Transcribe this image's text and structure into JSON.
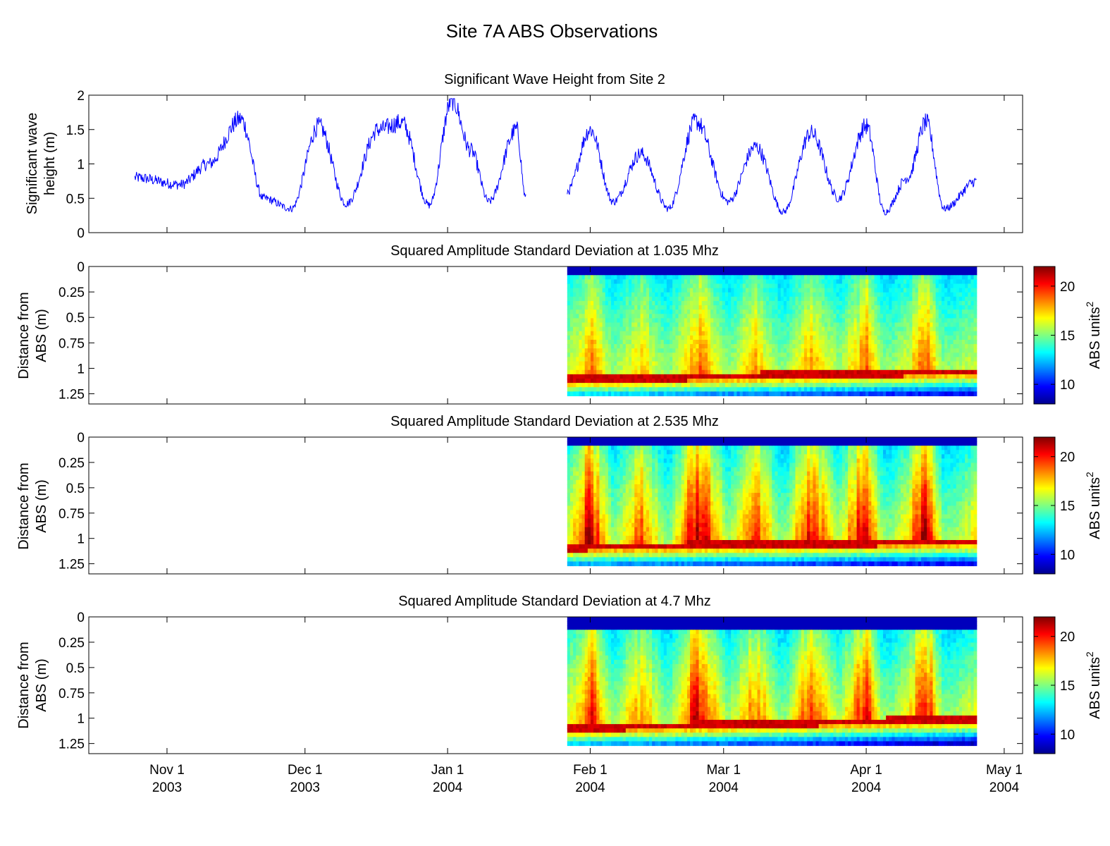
{
  "figure_title": "Site 7A ABS Observations",
  "x_axis": {
    "range": [
      "2003-10-15",
      "2004-05-05"
    ],
    "ticks": [
      {
        "date": "2003-11-01",
        "line1": "Nov 1",
        "line2": "2003"
      },
      {
        "date": "2003-12-01",
        "line1": "Dec 1",
        "line2": "2003"
      },
      {
        "date": "2004-01-01",
        "line1": "Jan 1",
        "line2": "2004"
      },
      {
        "date": "2004-02-01",
        "line1": "Feb 1",
        "line2": "2004"
      },
      {
        "date": "2004-03-01",
        "line1": "Mar 1",
        "line2": "2004"
      },
      {
        "date": "2004-04-01",
        "line1": "Apr 1",
        "line2": "2004"
      },
      {
        "date": "2004-05-01",
        "line1": "May 1",
        "line2": "2004"
      }
    ]
  },
  "colors": {
    "wave_line": "#0000ff",
    "jet": [
      "#00008f",
      "#0000ff",
      "#0080ff",
      "#00ffff",
      "#80ff80",
      "#ffff00",
      "#ff8000",
      "#ff0000",
      "#800000"
    ]
  },
  "chart_data": [
    {
      "type": "line",
      "title": "Significant Wave Height from Site 2",
      "ylabel": [
        "Significant wave",
        "height (m)"
      ],
      "ylim": [
        0,
        2
      ],
      "yticks": [
        "0",
        "0.5",
        "1",
        "1.5",
        "2"
      ],
      "segments": [
        {
          "start": "2003-10-25",
          "end": "2004-01-18",
          "approx_peaks": [
            {
              "date": "2003-10-25",
              "value": 0.8
            },
            {
              "date": "2003-11-04",
              "value": 0.7
            },
            {
              "date": "2003-11-10",
              "value": 1.0
            },
            {
              "date": "2003-11-17",
              "value": 1.65
            },
            {
              "date": "2003-11-22",
              "value": 0.5
            },
            {
              "date": "2003-11-28",
              "value": 0.35
            },
            {
              "date": "2003-12-04",
              "value": 1.55
            },
            {
              "date": "2003-12-10",
              "value": 0.42
            },
            {
              "date": "2003-12-17",
              "value": 1.5
            },
            {
              "date": "2003-12-22",
              "value": 1.6
            },
            {
              "date": "2003-12-28",
              "value": 0.4
            },
            {
              "date": "2004-01-02",
              "value": 1.93
            },
            {
              "date": "2004-01-06",
              "value": 1.2
            },
            {
              "date": "2004-01-10",
              "value": 0.45
            },
            {
              "date": "2004-01-16",
              "value": 1.5
            },
            {
              "date": "2004-01-18",
              "value": 0.5
            }
          ]
        },
        {
          "start": "2004-01-27",
          "end": "2004-04-25",
          "approx_peaks": [
            {
              "date": "2004-01-27",
              "value": 0.6
            },
            {
              "date": "2004-02-01",
              "value": 1.5
            },
            {
              "date": "2004-02-06",
              "value": 0.45
            },
            {
              "date": "2004-02-12",
              "value": 1.15
            },
            {
              "date": "2004-02-18",
              "value": 0.35
            },
            {
              "date": "2004-02-24",
              "value": 1.62
            },
            {
              "date": "2004-03-02",
              "value": 0.45
            },
            {
              "date": "2004-03-08",
              "value": 1.25
            },
            {
              "date": "2004-03-14",
              "value": 0.3
            },
            {
              "date": "2004-03-20",
              "value": 1.45
            },
            {
              "date": "2004-03-26",
              "value": 0.5
            },
            {
              "date": "2004-04-01",
              "value": 1.55
            },
            {
              "date": "2004-04-05",
              "value": 0.3
            },
            {
              "date": "2004-04-10",
              "value": 0.8
            },
            {
              "date": "2004-04-14",
              "value": 1.6
            },
            {
              "date": "2004-04-18",
              "value": 0.35
            },
            {
              "date": "2004-04-25",
              "value": 0.75
            }
          ]
        }
      ]
    },
    {
      "type": "heatmap",
      "title": "Squared Amplitude Standard Deviation at 1.035 Mhz",
      "ylabel": [
        "Distance from",
        "ABS (m)"
      ],
      "ylim": [
        0,
        1.35
      ],
      "yreverse": true,
      "yticks": [
        "0",
        "0.25",
        "0.5",
        "0.75",
        "1",
        "1.25"
      ],
      "time_start": "2004-01-27",
      "time_end": "2004-04-25",
      "surface_depth": 0.1,
      "bed_depth_start": 1.11,
      "bed_depth_end": 1.03,
      "bottom_limit": 1.27,
      "colorbar": {
        "label": "ABS units",
        "label_exponent": "2",
        "range": [
          8,
          22
        ],
        "ticks": [
          "10",
          "15",
          "20"
        ]
      }
    },
    {
      "type": "heatmap",
      "title": "Squared Amplitude Standard Deviation at 2.535 Mhz",
      "ylabel": [
        "Distance from",
        "ABS (m)"
      ],
      "ylim": [
        0,
        1.35
      ],
      "yreverse": true,
      "yticks": [
        "0",
        "0.25",
        "0.5",
        "0.75",
        "1",
        "1.25"
      ],
      "time_start": "2004-01-27",
      "time_end": "2004-04-25",
      "surface_depth": 0.1,
      "bed_depth_start": 1.09,
      "bed_depth_end": 1.03,
      "bottom_limit": 1.27,
      "colorbar": {
        "label": "ABS units",
        "label_exponent": "2",
        "range": [
          8,
          22
        ],
        "ticks": [
          "10",
          "15",
          "20"
        ]
      }
    },
    {
      "type": "heatmap",
      "title": "Squared Amplitude Standard Deviation at 4.7 Mhz",
      "ylabel": [
        "Distance from",
        "ABS (m)"
      ],
      "ylim": [
        0,
        1.35
      ],
      "yreverse": true,
      "yticks": [
        "0",
        "0.25",
        "0.5",
        "0.75",
        "1",
        "1.25"
      ],
      "time_start": "2004-01-27",
      "time_end": "2004-04-25",
      "surface_depth": 0.12,
      "bed_depth_start": 1.1,
      "bed_depth_end": 1.01,
      "bottom_limit": 1.27,
      "colorbar": {
        "label": "ABS units",
        "label_exponent": "2",
        "range": [
          8,
          22
        ],
        "ticks": [
          "10",
          "15",
          "20"
        ]
      }
    }
  ]
}
